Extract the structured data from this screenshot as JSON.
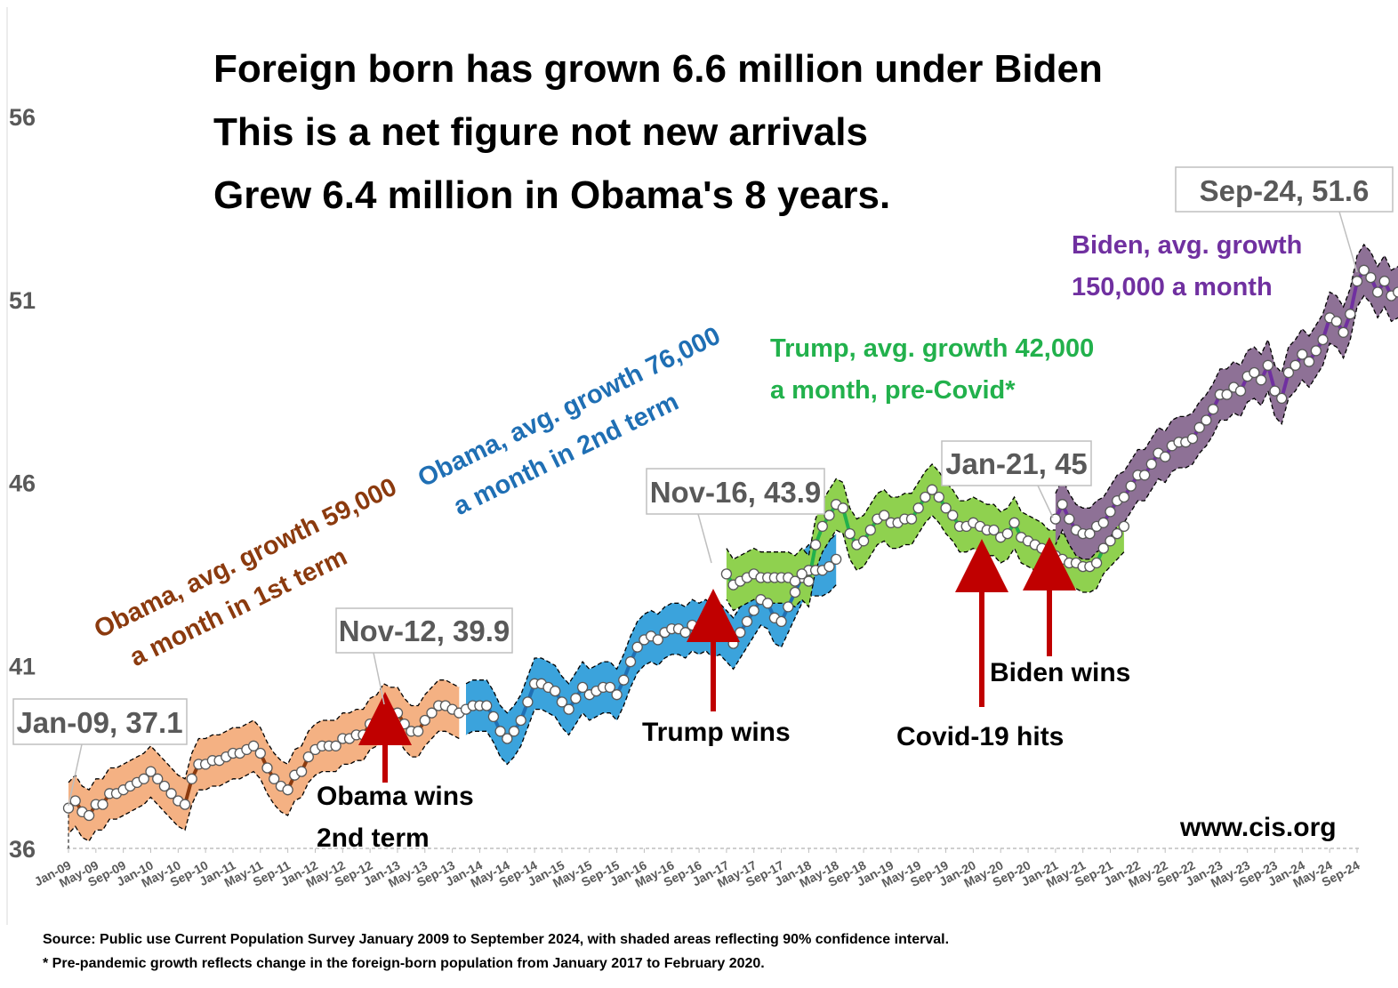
{
  "colors": {
    "obama1": "#8B3A0E",
    "obama1_band": "#F4B183",
    "obama2": "#1F6FB4",
    "obama2_band": "#3BA3DC",
    "trump": "#22B14C",
    "trump_band": "#8FD14F",
    "biden": "#7030A0",
    "biden_band": "#8E7196",
    "arrow": "#C00000",
    "callout_border": "#BFBFBF",
    "axis_text": "#595959"
  },
  "title_lines": [
    "Foreign born has grown 6.6 million under Biden",
    "This is a net figure not new arrivals",
    "Grew 6.4 million in Obama's 8 years."
  ],
  "period_labels": {
    "obama1": {
      "line1": "Obama, avg. growth 59,000",
      "line2": "a month in 1st  term"
    },
    "obama2": {
      "line1": "Obama, avg. growth 76,000",
      "line2": "a month in 2nd term"
    },
    "trump": {
      "line1": "Trump, avg. growth 42,000",
      "line2": "a month, pre-Covid*"
    },
    "biden": {
      "line1": "Biden, avg. growth",
      "line2": "150,000 a month"
    }
  },
  "callouts": [
    {
      "key": "jan09",
      "label": "Jan-09,  37.1"
    },
    {
      "key": "nov12",
      "label": "Nov-12,  39.9"
    },
    {
      "key": "nov16",
      "label": "Nov-16,  43.9"
    },
    {
      "key": "jan21",
      "label": "Jan-21,  45"
    },
    {
      "key": "sep24",
      "label": "Sep-24,  51.6"
    }
  ],
  "events": [
    {
      "key": "obama",
      "line1": "Obama wins",
      "line2": "2nd term"
    },
    {
      "key": "trump",
      "line1": "Trump wins",
      "line2": ""
    },
    {
      "key": "covid",
      "line1": "Covid-19 hits",
      "line2": ""
    },
    {
      "key": "biden",
      "line1": "Biden wins",
      "line2": ""
    }
  ],
  "site": "www.cis.org",
  "footnotes": [
    "Source: Public use Current Population Survey January 2009 to September 2024, with shaded areas reflecting 90% confidence interval.",
    "* Pre-pandemic growth reflects change in the foreign-born population from January 2017 to February 2020."
  ],
  "chart_data": {
    "type": "line",
    "title": "Foreign born has grown 6.6 million under Biden",
    "xlabel": "",
    "ylabel": "",
    "ylim": [
      36,
      56
    ],
    "yticks": [
      36,
      41,
      46,
      51,
      56
    ],
    "x_start": "Jan-09",
    "x_end": "Sep-24",
    "xticks": [
      "Jan-09",
      "May-09",
      "Sep-09",
      "Jan-10",
      "May-10",
      "Sep-10",
      "Jan-11",
      "May-11",
      "Sep-11",
      "Jan-12",
      "May-12",
      "Sep-12",
      "Jan-13",
      "May-13",
      "Sep-13",
      "Jan-14",
      "May-14",
      "Sep-14",
      "Jan-15",
      "May-15",
      "Sep-15",
      "Jan-16",
      "May-16",
      "Sep-16",
      "Jan-17",
      "May-17",
      "Sep-17",
      "Jan-18",
      "May-18",
      "Sep-18",
      "Jan-19",
      "May-19",
      "Sep-19",
      "Jan-20",
      "May-20",
      "Sep-20",
      "Jan-21",
      "May-21",
      "Sep-21",
      "Jan-22",
      "May-22",
      "Sep-22",
      "Jan-23",
      "May-23",
      "Sep-23",
      "Jan-24",
      "May-24",
      "Sep-24"
    ],
    "confidence_interval_half_width": 0.7,
    "series": [
      {
        "name": "Obama, avg. growth 59,000 a month in 1st  term",
        "start": "Jan-09",
        "values": [
          37.1,
          37.3,
          37.0,
          36.9,
          37.2,
          37.2,
          37.5,
          37.5,
          37.6,
          37.7,
          37.8,
          37.9,
          38.1,
          37.9,
          37.7,
          37.5,
          37.3,
          37.2,
          37.9,
          38.3,
          38.3,
          38.4,
          38.4,
          38.5,
          38.6,
          38.6,
          38.7,
          38.8,
          38.6,
          38.2,
          37.9,
          37.7,
          37.6,
          38.0,
          38.1,
          38.5,
          38.7,
          38.8,
          38.8,
          38.8,
          39.0,
          39.0,
          39.1,
          39.1,
          39.4,
          39.5,
          39.8,
          39.7,
          39.7,
          39.4,
          39.2,
          39.2,
          39.5,
          39.7,
          39.9,
          39.9,
          39.8,
          39.7
        ]
      },
      {
        "name": "Obama, avg. growth 76,000 a month in 2nd term",
        "start": "Nov-13",
        "values": [
          39.8,
          39.9,
          39.9,
          39.9,
          39.6,
          39.2,
          39.0,
          39.2,
          39.5,
          40.0,
          40.5,
          40.5,
          40.4,
          40.3,
          40.0,
          39.8,
          40.1,
          40.4,
          40.2,
          40.3,
          40.4,
          40.4,
          40.2,
          40.6,
          41.1,
          41.5,
          41.7,
          41.8,
          41.7,
          41.9,
          42.0,
          42.0,
          41.9,
          42.1,
          42.0,
          42.1,
          41.9,
          42.0,
          41.8,
          41.6,
          41.9,
          42.2,
          42.5,
          42.8,
          42.7,
          42.3,
          42.2,
          42.6,
          43.0,
          43.4,
          43.6,
          43.6,
          43.6,
          43.7,
          43.9
        ]
      },
      {
        "name": "Trump, avg. growth 42,000 a month, pre-Covid*",
        "start": "Jan-17",
        "values": [
          43.5,
          43.2,
          43.3,
          43.4,
          43.5,
          43.4,
          43.4,
          43.4,
          43.4,
          43.4,
          43.3,
          43.5,
          43.3,
          44.3,
          44.8,
          45.1,
          45.4,
          45.3,
          44.6,
          44.3,
          44.4,
          44.7,
          45.0,
          45.1,
          44.9,
          44.9,
          45.0,
          45.0,
          45.3,
          45.6,
          45.8,
          45.6,
          45.3,
          45.1,
          44.8,
          44.8,
          44.9,
          44.8,
          44.7,
          44.7,
          44.5,
          44.6,
          44.9,
          44.5,
          44.4,
          44.3,
          44.2,
          44.0,
          44.0,
          43.9,
          43.8,
          43.8,
          43.7,
          43.7,
          43.8,
          44.2,
          44.4,
          44.6,
          44.8
        ]
      },
      {
        "name": "Biden, avg. growth 150,000 a month",
        "start": "Jan-21",
        "values": [
          45.0,
          45.4,
          45.0,
          44.7,
          44.6,
          44.6,
          44.8,
          44.9,
          45.2,
          45.5,
          45.6,
          45.9,
          46.2,
          46.2,
          46.5,
          46.8,
          46.7,
          47.0,
          47.1,
          47.1,
          47.2,
          47.5,
          47.7,
          48.0,
          48.4,
          48.4,
          48.6,
          48.5,
          48.9,
          49.0,
          48.8,
          49.2,
          48.5,
          48.3,
          49.0,
          49.2,
          49.5,
          49.3,
          49.6,
          49.9,
          50.5,
          50.4,
          50.1,
          50.6,
          51.5,
          51.8,
          51.6,
          51.2,
          51.5,
          51.1,
          51.2,
          51.6,
          51.6,
          51.6
        ]
      }
    ]
  }
}
